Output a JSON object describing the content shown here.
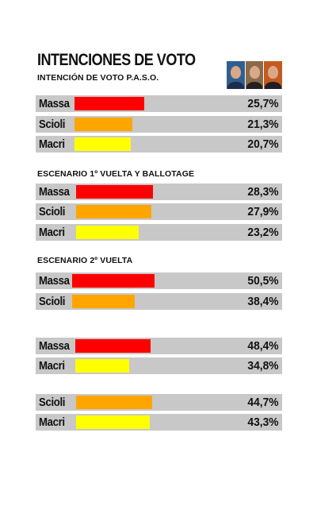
{
  "title": "INTENCIONES DE VOTO",
  "photos": [
    {
      "name": "massa-photo",
      "suit": "#1f2b4a",
      "bg": "#2f5f8f"
    },
    {
      "name": "scioli-photo",
      "suit": "#222222",
      "bg": "#8a6a4a"
    },
    {
      "name": "macri-photo",
      "suit": "#1e1e28",
      "bg": "#c45a1e"
    }
  ],
  "colors": {
    "Massa": "#ff0000",
    "Scioli": "#ffa500",
    "Macri": "#ffff00"
  },
  "chart_data": [
    {
      "type": "bar",
      "title": "INTENCIÓN DE VOTO  P.A.S.O.",
      "categories": [
        "Massa",
        "Scioli",
        "Macri"
      ],
      "values": [
        25.7,
        21.3,
        20.7
      ],
      "labels": [
        "25,7%",
        "21,3%",
        "20,7%"
      ]
    },
    {
      "type": "bar",
      "title": "ESCENARIO 1º VUELTA Y BALLOTAGE",
      "categories": [
        "Massa",
        "Scioli",
        "Macri"
      ],
      "values": [
        28.3,
        27.9,
        23.2
      ],
      "labels": [
        "28,3%",
        "27,9%",
        "23,2%"
      ]
    },
    {
      "type": "bar",
      "title": "ESCENARIO 2º VUELTA",
      "categories": [
        "Massa",
        "Scioli"
      ],
      "values": [
        50.5,
        38.4
      ],
      "labels": [
        "50,5%",
        "38,4%"
      ]
    },
    {
      "type": "bar",
      "title": "",
      "categories": [
        "Massa",
        "Macri"
      ],
      "values": [
        48.4,
        34.8
      ],
      "labels": [
        "48,4%",
        "34,8%"
      ]
    },
    {
      "type": "bar",
      "title": "",
      "categories": [
        "Scioli",
        "Macri"
      ],
      "values": [
        44.7,
        43.3
      ],
      "labels": [
        "44,7%",
        "43,3%"
      ]
    }
  ]
}
